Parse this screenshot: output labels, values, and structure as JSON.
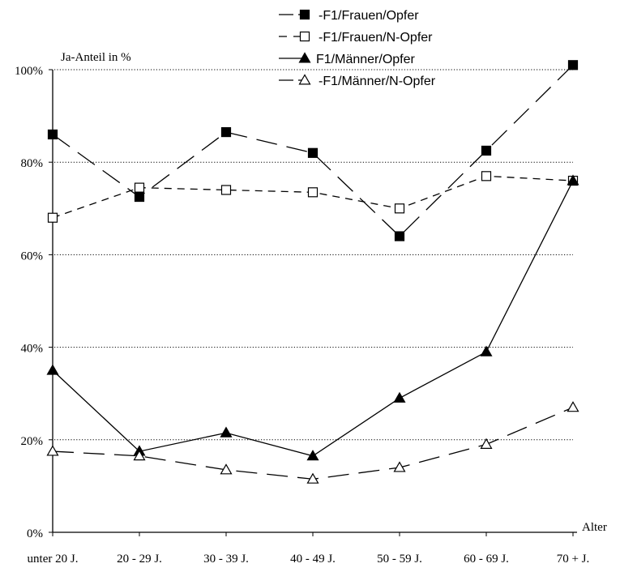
{
  "chart_data": {
    "type": "line",
    "title": "",
    "ylabel": "Ja-Anteil in %",
    "xlabel": "Alter",
    "ylim": [
      0,
      100
    ],
    "yticks": [
      0,
      20,
      40,
      60,
      80,
      100
    ],
    "ytick_labels": [
      "0%",
      "20%",
      "40%",
      "60%",
      "80%",
      "100%"
    ],
    "categories": [
      "unter 20 J.",
      "20 - 29 J.",
      "30 - 39 J.",
      "40 - 49 J.",
      "50 - 59 J.",
      "60 - 69 J.",
      "70 + J."
    ],
    "grid": "horizontal-dotted",
    "legend_position": "top-right",
    "series": [
      {
        "name": "F1/Frauen/Opfer",
        "marker": "filled-square",
        "line": "long-dash",
        "values": [
          86,
          72.5,
          86.5,
          82,
          64,
          82.5,
          101
        ]
      },
      {
        "name": "F1/Frauen/N-Opfer",
        "marker": "open-square",
        "line": "short-dash",
        "values": [
          68,
          74.5,
          74,
          73.5,
          70,
          77,
          76
        ]
      },
      {
        "name": "F1/Männer/Opfer",
        "marker": "filled-triangle",
        "line": "solid",
        "values": [
          35,
          17.5,
          21.5,
          16.5,
          29,
          39,
          76
        ]
      },
      {
        "name": "F1/Männer/N-Opfer",
        "marker": "open-triangle",
        "line": "long-dash",
        "values": [
          17.5,
          16.5,
          13.5,
          11.5,
          14,
          19,
          27
        ]
      }
    ]
  }
}
